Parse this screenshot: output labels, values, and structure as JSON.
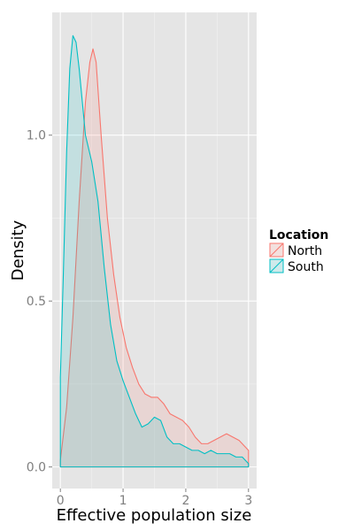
{
  "chart_data": {
    "type": "area",
    "xlabel": "Effective population size",
    "ylabel": "Density",
    "xlim": [
      -0.13,
      3.13
    ],
    "ylim": [
      -0.065,
      1.37
    ],
    "x_ticks": [
      0,
      1,
      2,
      3
    ],
    "x_tick_labels": [
      "0",
      "1",
      "2",
      "3"
    ],
    "y_ticks": [
      0.0,
      0.5,
      1.0
    ],
    "y_tick_labels": [
      "0.0",
      "0.5",
      "1.0"
    ],
    "grid": true,
    "legend": {
      "title": "Location",
      "placement": "right"
    },
    "series": [
      {
        "name": "North",
        "color": "#F8766D",
        "fill": "rgba(248,118,109,0.15)",
        "x": [
          0.0,
          0.1,
          0.2,
          0.3,
          0.4,
          0.47,
          0.52,
          0.57,
          0.65,
          0.75,
          0.85,
          0.95,
          1.05,
          1.15,
          1.25,
          1.35,
          1.45,
          1.55,
          1.65,
          1.75,
          1.85,
          1.95,
          2.05,
          2.15,
          2.25,
          2.35,
          2.45,
          2.55,
          2.65,
          2.75,
          2.85,
          2.95,
          3.0
        ],
        "y": [
          0.02,
          0.18,
          0.45,
          0.8,
          1.1,
          1.22,
          1.26,
          1.22,
          1.0,
          0.75,
          0.58,
          0.45,
          0.36,
          0.3,
          0.25,
          0.22,
          0.21,
          0.21,
          0.19,
          0.16,
          0.15,
          0.14,
          0.12,
          0.09,
          0.07,
          0.07,
          0.08,
          0.09,
          0.1,
          0.09,
          0.08,
          0.06,
          0.05
        ]
      },
      {
        "name": "South",
        "color": "#00BFC4",
        "fill": "rgba(0,191,196,0.15)",
        "x": [
          0.0,
          0.05,
          0.1,
          0.15,
          0.2,
          0.25,
          0.3,
          0.35,
          0.4,
          0.5,
          0.6,
          0.7,
          0.8,
          0.9,
          1.0,
          1.1,
          1.2,
          1.3,
          1.4,
          1.5,
          1.6,
          1.7,
          1.8,
          1.9,
          2.0,
          2.1,
          2.2,
          2.3,
          2.4,
          2.5,
          2.6,
          2.7,
          2.8,
          2.9,
          3.0
        ],
        "y": [
          0.27,
          0.6,
          0.95,
          1.2,
          1.3,
          1.28,
          1.2,
          1.1,
          1.0,
          0.92,
          0.8,
          0.6,
          0.43,
          0.32,
          0.26,
          0.21,
          0.16,
          0.12,
          0.13,
          0.15,
          0.14,
          0.09,
          0.07,
          0.07,
          0.06,
          0.05,
          0.05,
          0.04,
          0.05,
          0.04,
          0.04,
          0.04,
          0.03,
          0.03,
          0.01
        ]
      }
    ]
  }
}
